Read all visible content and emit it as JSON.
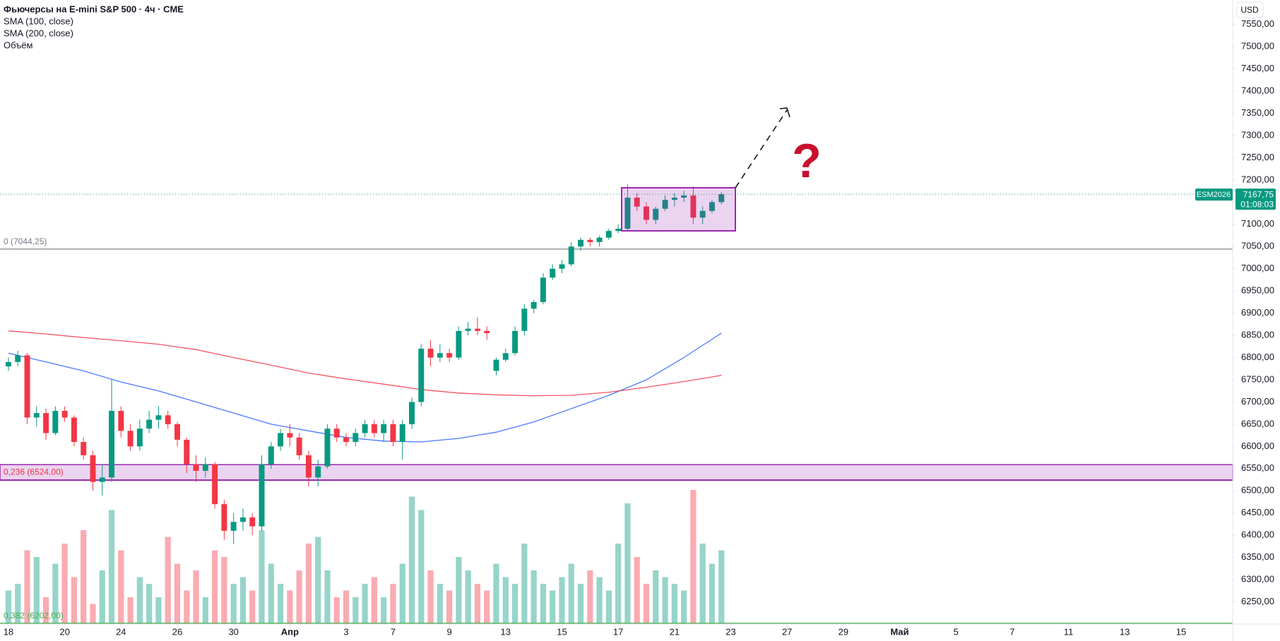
{
  "chart_data": {
    "type": "candlestick",
    "title": "Фьючерсы на E-mini S&P 500 · 4ч · CME",
    "volume_name": "Объём",
    "currency": "USD",
    "symbol": "ESM2026",
    "countdown": "01:08:03",
    "annotation": "?",
    "last_price": {
      "value": 7167.75,
      "label": "7167,75"
    },
    "up_color": "#089981",
    "down_color": "#f23645",
    "open": [
      6780,
      6790,
      6805,
      6665,
      6675,
      6630,
      6680,
      6665,
      6610,
      6580,
      6520,
      6530,
      6680,
      6635,
      6600,
      6640,
      6660,
      6670,
      6650,
      6615,
      6560,
      6545,
      6560,
      6470,
      6410,
      6430,
      6440,
      6420,
      6560,
      6600,
      6630,
      6620,
      6580,
      6530,
      6555,
      6640,
      6620,
      6610,
      6630,
      6650,
      6630,
      6650,
      6610,
      6650,
      6700,
      6820,
      6800,
      6810,
      6800,
      6860,
      6865,
      6860,
      6770,
      6795,
      6810,
      6860,
      6910,
      6925,
      6980,
      7000,
      7010,
      7050,
      7065,
      7060,
      7070,
      7085,
      7090,
      7160,
      7140,
      7110,
      7135,
      7155,
      7160,
      7165,
      7115,
      7130,
      7150
    ],
    "high": [
      6800,
      6815,
      6810,
      6690,
      6685,
      6690,
      6690,
      6670,
      6620,
      6590,
      6560,
      6750,
      6690,
      6650,
      6660,
      6680,
      6690,
      6680,
      6655,
      6620,
      6580,
      6575,
      6565,
      6480,
      6450,
      6460,
      6450,
      6580,
      6610,
      6640,
      6650,
      6630,
      6590,
      6570,
      6650,
      6650,
      6630,
      6640,
      6660,
      6660,
      6660,
      6660,
      6660,
      6710,
      6830,
      6840,
      6830,
      6820,
      6870,
      6880,
      6890,
      6870,
      6800,
      6820,
      6870,
      6920,
      6930,
      6990,
      7010,
      7020,
      7060,
      7070,
      7070,
      7075,
      7090,
      7100,
      7190,
      7170,
      7150,
      7140,
      7165,
      7170,
      7175,
      7185,
      7140,
      7155,
      7172
    ],
    "low": [
      6770,
      6780,
      6650,
      6645,
      6615,
      6625,
      6655,
      6600,
      6570,
      6500,
      6490,
      6520,
      6620,
      6590,
      6590,
      6630,
      6640,
      6640,
      6600,
      6540,
      6520,
      6530,
      6460,
      6390,
      6380,
      6410,
      6400,
      6410,
      6550,
      6590,
      6600,
      6570,
      6510,
      6510,
      6550,
      6610,
      6600,
      6600,
      6620,
      6620,
      6610,
      6600,
      6570,
      6640,
      6690,
      6780,
      6790,
      6790,
      6795,
      6850,
      6850,
      6840,
      6760,
      6790,
      6805,
      6850,
      6900,
      6920,
      6975,
      6990,
      7005,
      7040,
      7050,
      7050,
      7065,
      7080,
      7085,
      7130,
      7100,
      7100,
      7130,
      7140,
      7150,
      7100,
      7100,
      7125,
      7145
    ],
    "close": [
      6790,
      6805,
      6665,
      6675,
      6630,
      6680,
      6665,
      6610,
      6580,
      6520,
      6530,
      6680,
      6635,
      6600,
      6640,
      6660,
      6670,
      6650,
      6615,
      6560,
      6545,
      6560,
      6470,
      6410,
      6430,
      6440,
      6420,
      6560,
      6600,
      6630,
      6620,
      6580,
      6530,
      6555,
      6640,
      6620,
      6610,
      6630,
      6650,
      6630,
      6650,
      6610,
      6650,
      6700,
      6820,
      6800,
      6810,
      6800,
      6860,
      6865,
      6860,
      6855,
      6795,
      6810,
      6860,
      6910,
      6925,
      6980,
      7000,
      7010,
      7050,
      7065,
      7060,
      7070,
      7085,
      7090,
      7160,
      7140,
      7110,
      7135,
      7155,
      7160,
      7165,
      7115,
      7130,
      7150,
      7167.75
    ],
    "volume": [
      25,
      30,
      55,
      50,
      20,
      45,
      60,
      35,
      70,
      15,
      40,
      85,
      55,
      20,
      35,
      30,
      20,
      65,
      45,
      25,
      40,
      20,
      55,
      50,
      30,
      35,
      25,
      70,
      45,
      30,
      25,
      40,
      60,
      65,
      40,
      20,
      25,
      20,
      30,
      35,
      20,
      30,
      45,
      95,
      85,
      40,
      30,
      25,
      50,
      40,
      30,
      25,
      45,
      35,
      30,
      60,
      40,
      30,
      25,
      35,
      45,
      30,
      40,
      35,
      25,
      60,
      90,
      50,
      30,
      40,
      35,
      30,
      25,
      100,
      60,
      45,
      55
    ],
    "series": [
      {
        "name": "SMA (100, close)",
        "color": "#2962ff",
        "x": [
          0,
          4,
          8,
          12,
          16,
          20,
          24,
          28,
          32,
          36,
          40,
          44,
          48,
          52,
          56,
          60,
          64,
          68,
          72,
          76
        ],
        "values": [
          6810,
          6790,
          6770,
          6745,
          6725,
          6700,
          6675,
          6650,
          6635,
          6620,
          6612,
          6610,
          6618,
          6632,
          6655,
          6685,
          6715,
          6750,
          6800,
          6855
        ]
      },
      {
        "name": "SMA (200, close)",
        "color": "#f23645",
        "x": [
          0,
          4,
          8,
          12,
          16,
          20,
          24,
          28,
          32,
          36,
          40,
          44,
          48,
          52,
          56,
          60,
          64,
          68,
          72,
          76
        ],
        "values": [
          6860,
          6853,
          6845,
          6838,
          6830,
          6818,
          6800,
          6783,
          6765,
          6752,
          6740,
          6728,
          6720,
          6716,
          6714,
          6715,
          6722,
          6733,
          6746,
          6760
        ]
      }
    ],
    "levels": [
      {
        "value": 7044.25,
        "label": "0 (7044,25)",
        "color": "#787b86",
        "band": false
      },
      {
        "value": 6524,
        "label": "0,236 (6524,00)",
        "color": "#9c27b0",
        "label_color": "#f23645",
        "band": true
      },
      {
        "value": 6202,
        "label": "0,382 (6202,00)",
        "color": "#4caf50",
        "band": false
      }
    ],
    "xlim": [
      -0.9,
      130.5
    ],
    "ylim": [
      6200,
      7605
    ],
    "xticks": [
      {
        "value": 0,
        "label": "18"
      },
      {
        "value": 6,
        "label": "20"
      },
      {
        "value": 12,
        "label": "24"
      },
      {
        "value": 18,
        "label": "26"
      },
      {
        "value": 24,
        "label": "30"
      },
      {
        "value": 30,
        "label": "Апр"
      },
      {
        "value": 36,
        "label": "3"
      },
      {
        "value": 41,
        "label": "7"
      },
      {
        "value": 47,
        "label": "9"
      },
      {
        "value": 53,
        "label": "13"
      },
      {
        "value": 59,
        "label": "15"
      },
      {
        "value": 65,
        "label": "17"
      },
      {
        "value": 71,
        "label": "21"
      },
      {
        "value": 77,
        "label": "23"
      },
      {
        "value": 83,
        "label": "27"
      },
      {
        "value": 89,
        "label": "29"
      },
      {
        "value": 95,
        "label": "Май"
      },
      {
        "value": 101,
        "label": "5"
      },
      {
        "value": 107,
        "label": "7"
      },
      {
        "value": 113,
        "label": "11"
      },
      {
        "value": 119,
        "label": "13"
      },
      {
        "value": 125,
        "label": "15"
      }
    ],
    "yticks": [
      {
        "value": 7550,
        "label": "7550,00"
      },
      {
        "value": 7500,
        "label": "7500,00"
      },
      {
        "value": 7450,
        "label": "7450,00"
      },
      {
        "value": 7400,
        "label": "7400,00"
      },
      {
        "value": 7350,
        "label": "7350,00"
      },
      {
        "value": 7300,
        "label": "7300,00"
      },
      {
        "value": 7250,
        "label": "7250,00"
      },
      {
        "value": 7200,
        "label": "7200,00"
      },
      {
        "value": 7150,
        "label": "7150,00"
      },
      {
        "value": 7100,
        "label": "7100,00"
      },
      {
        "value": 7050,
        "label": "7050,00"
      },
      {
        "value": 7000,
        "label": "7000,00"
      },
      {
        "value": 6950,
        "label": "6950,00"
      },
      {
        "value": 6900,
        "label": "6900,00"
      },
      {
        "value": 6850,
        "label": "6850,00"
      },
      {
        "value": 6800,
        "label": "6800,00"
      },
      {
        "value": 6750,
        "label": "6750,00"
      },
      {
        "value": 6700,
        "label": "6700,00"
      },
      {
        "value": 6650,
        "label": "6650,00"
      },
      {
        "value": 6600,
        "label": "6600,00"
      },
      {
        "value": 6550,
        "label": "6550,00"
      },
      {
        "value": 6500,
        "label": "6500,00"
      },
      {
        "value": 6450,
        "label": "6450,00"
      },
      {
        "value": 6400,
        "label": "6400,00"
      },
      {
        "value": 6350,
        "label": "6350,00"
      },
      {
        "value": 6300,
        "label": "6300,00"
      },
      {
        "value": 6250,
        "label": "6250,00"
      }
    ]
  }
}
